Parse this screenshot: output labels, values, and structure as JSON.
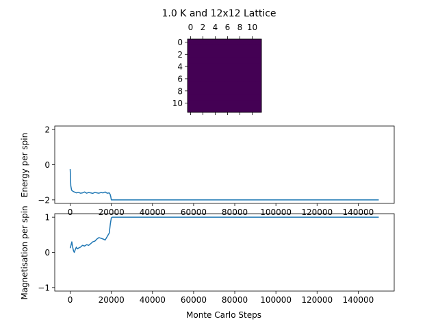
{
  "chart_data": [
    {
      "type": "heatmap",
      "title": "1.0 K and 12x12 Lattice",
      "rows": 12,
      "cols": 12,
      "fill_value": 1,
      "fill_color": "#440154",
      "x_ticks": [
        "0",
        "2",
        "4",
        "6",
        "8",
        "10"
      ],
      "y_ticks": [
        "0",
        "2",
        "4",
        "6",
        "8",
        "10"
      ],
      "x_tick_values": [
        0,
        2,
        4,
        6,
        8,
        10
      ],
      "y_tick_values": [
        0,
        2,
        4,
        6,
        8,
        10
      ]
    },
    {
      "type": "line",
      "xlabel": "",
      "ylabel": "Energy per spin",
      "xlim": [
        -7500,
        157500
      ],
      "ylim": [
        -2.2,
        2.2
      ],
      "x_ticks": [
        0,
        20000,
        40000,
        60000,
        80000,
        100000,
        120000,
        140000
      ],
      "x_tick_labels": [
        "0",
        "20000",
        "40000",
        "60000",
        "80000",
        "100000",
        "120000",
        "140000"
      ],
      "y_ticks": [
        -2,
        0,
        2
      ],
      "y_tick_labels": [
        "−2",
        "0",
        "2"
      ],
      "grid": false,
      "color": "#1f77b4",
      "series": [
        {
          "x": [
            0,
            300,
            700,
            1200,
            2000,
            3000,
            4000,
            5000,
            6000,
            7000,
            8000,
            9000,
            10000,
            11000,
            12000,
            13000,
            14000,
            15000,
            16000,
            17000,
            18000,
            19000,
            19400,
            19700,
            20000,
            150000
          ],
          "y": [
            -0.25,
            -1.2,
            -1.45,
            -1.5,
            -1.55,
            -1.6,
            -1.57,
            -1.62,
            -1.6,
            -1.55,
            -1.62,
            -1.58,
            -1.6,
            -1.63,
            -1.57,
            -1.6,
            -1.62,
            -1.58,
            -1.6,
            -1.55,
            -1.62,
            -1.6,
            -1.68,
            -1.8,
            -2.0,
            -2.0
          ]
        }
      ]
    },
    {
      "type": "line",
      "xlabel": "Monte Carlo Steps",
      "ylabel": "Magnetisation per spin",
      "xlim": [
        -7500,
        157500
      ],
      "ylim": [
        -1.1,
        1.1
      ],
      "x_ticks": [
        0,
        20000,
        40000,
        60000,
        80000,
        100000,
        120000,
        140000
      ],
      "x_tick_labels": [
        "0",
        "20000",
        "40000",
        "60000",
        "80000",
        "100000",
        "120000",
        "140000"
      ],
      "y_ticks": [
        -1,
        0,
        1
      ],
      "y_tick_labels": [
        "−1",
        "0",
        "1"
      ],
      "grid": false,
      "color": "#1f77b4",
      "series": [
        {
          "x": [
            0,
            400,
            800,
            1200,
            1600,
            2000,
            2500,
            3000,
            3500,
            4000,
            5000,
            6000,
            7000,
            8000,
            9000,
            10000,
            11000,
            12000,
            13000,
            14000,
            15000,
            16000,
            17000,
            18000,
            19000,
            19500,
            20000,
            20500,
            150000
          ],
          "y": [
            0.12,
            0.2,
            0.3,
            0.15,
            0.05,
            0.0,
            0.08,
            0.15,
            0.1,
            0.12,
            0.15,
            0.2,
            0.18,
            0.22,
            0.2,
            0.25,
            0.3,
            0.32,
            0.38,
            0.42,
            0.4,
            0.38,
            0.35,
            0.45,
            0.55,
            0.8,
            0.98,
            1.0,
            1.0
          ]
        }
      ]
    }
  ]
}
